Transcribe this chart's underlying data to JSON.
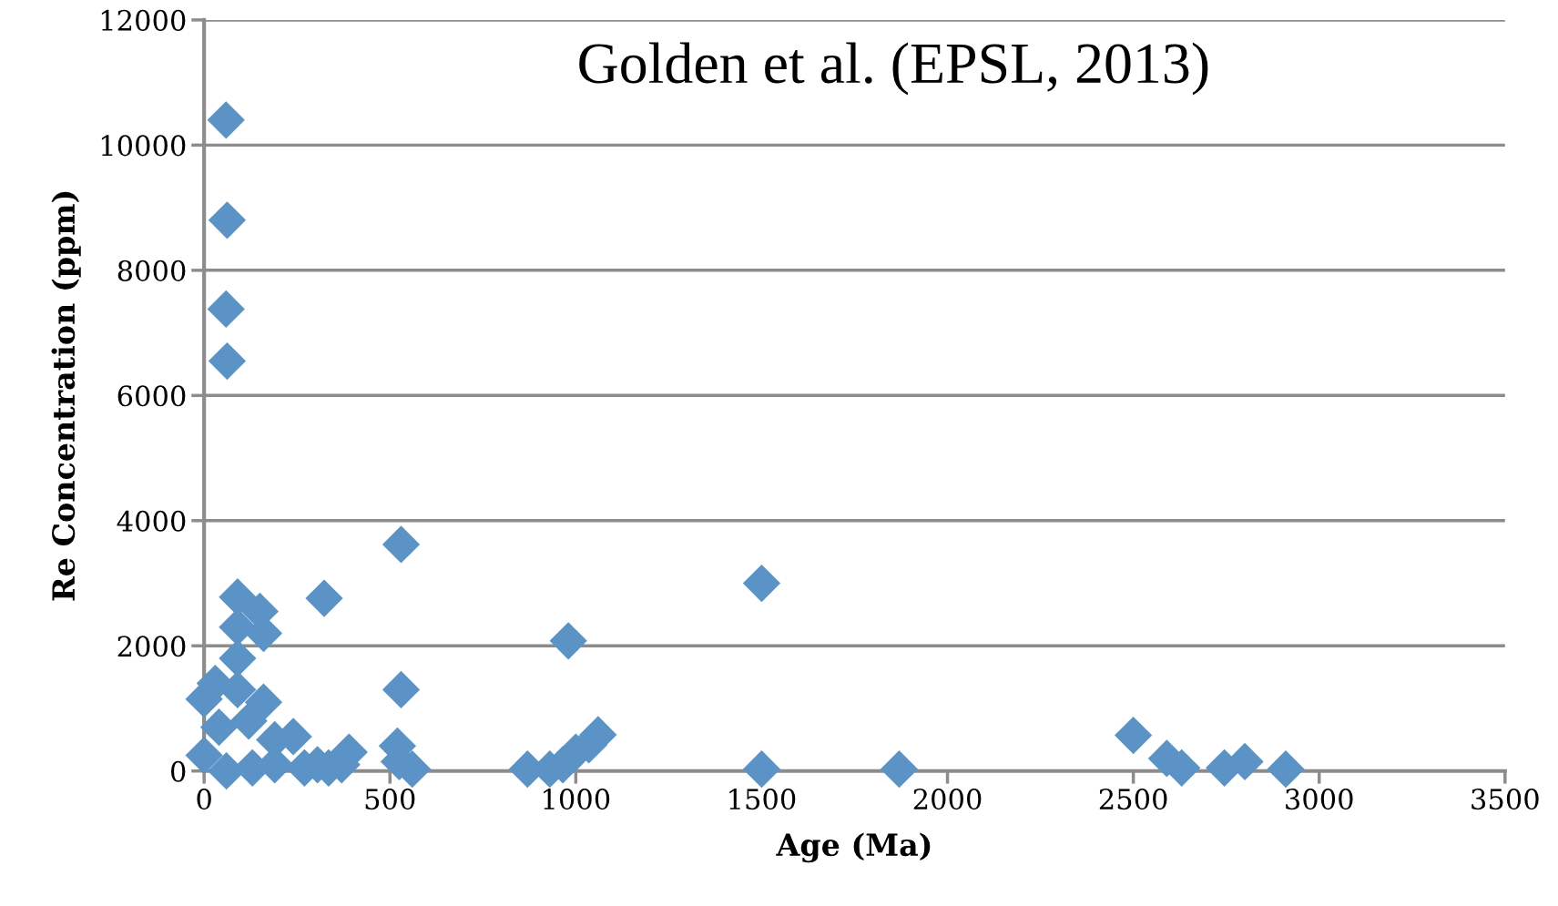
{
  "chart_data": {
    "type": "scatter",
    "xlabel": "Age (Ma)",
    "ylabel": "Re Concentration (ppm)",
    "annotations": [
      "Golden et al. (EPSL, 2013)"
    ],
    "series": [
      {
        "color": "#5b93c7",
        "x": [
          59,
          62,
          59,
          62,
          90,
          90,
          90,
          90,
          150,
          160,
          160,
          0,
          30,
          40,
          120,
          190,
          0,
          60,
          130,
          190,
          240,
          270,
          305,
          335,
          390,
          370,
          323,
          530,
          530,
          520,
          525,
          560,
          870,
          930,
          965,
          980,
          1000,
          1035,
          1060,
          1500,
          1500,
          1870,
          2500,
          2590,
          2630,
          2745,
          2800,
          2910
        ],
        "values": [
          10400,
          8800,
          7380,
          6550,
          2780,
          2300,
          1800,
          1300,
          2550,
          2200,
          1100,
          1150,
          1400,
          700,
          800,
          500,
          250,
          0,
          50,
          100,
          550,
          50,
          100,
          50,
          300,
          100,
          2760,
          3620,
          1300,
          400,
          150,
          30,
          30,
          30,
          100,
          2080,
          300,
          420,
          580,
          30,
          3000,
          30,
          570,
          200,
          50,
          50,
          150,
          30
        ]
      }
    ],
    "xlim": [
      0,
      3500
    ],
    "ylim": [
      0,
      12000
    ],
    "xticks": [
      0,
      500,
      1000,
      1500,
      2000,
      2500,
      3000,
      3500
    ],
    "yticks": [
      0,
      2000,
      4000,
      6000,
      8000,
      10000,
      12000
    ],
    "grid": "y",
    "marker": "diamond"
  }
}
